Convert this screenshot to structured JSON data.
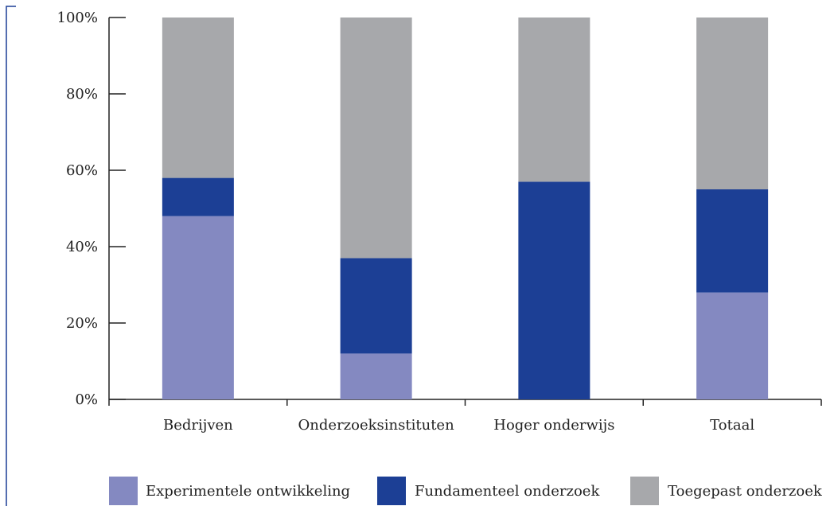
{
  "chart_data": {
    "type": "bar",
    "stacked": true,
    "title": "",
    "xlabel": "",
    "ylabel": "",
    "ylim": [
      0,
      100
    ],
    "y_ticks": [
      "0%",
      "20%",
      "40%",
      "60%",
      "80%",
      "100%"
    ],
    "y_tick_values": [
      0,
      20,
      40,
      60,
      80,
      100
    ],
    "categories": [
      "Bedrijven",
      "Onderzoeksinstituten",
      "Hoger onderwijs",
      "Totaal"
    ],
    "series": [
      {
        "name": "Experimentele ontwikkeling",
        "color": "#8489c1",
        "values": [
          48,
          12,
          0,
          28
        ]
      },
      {
        "name": "Fundamenteel onderzoek",
        "color": "#1c3f95",
        "values": [
          10,
          25,
          57,
          27
        ]
      },
      {
        "name": "Toegepast onderzoek",
        "color": "#a7a8ab",
        "values": [
          42,
          63,
          43,
          45
        ]
      }
    ],
    "grid": false,
    "legend_position": "bottom"
  }
}
